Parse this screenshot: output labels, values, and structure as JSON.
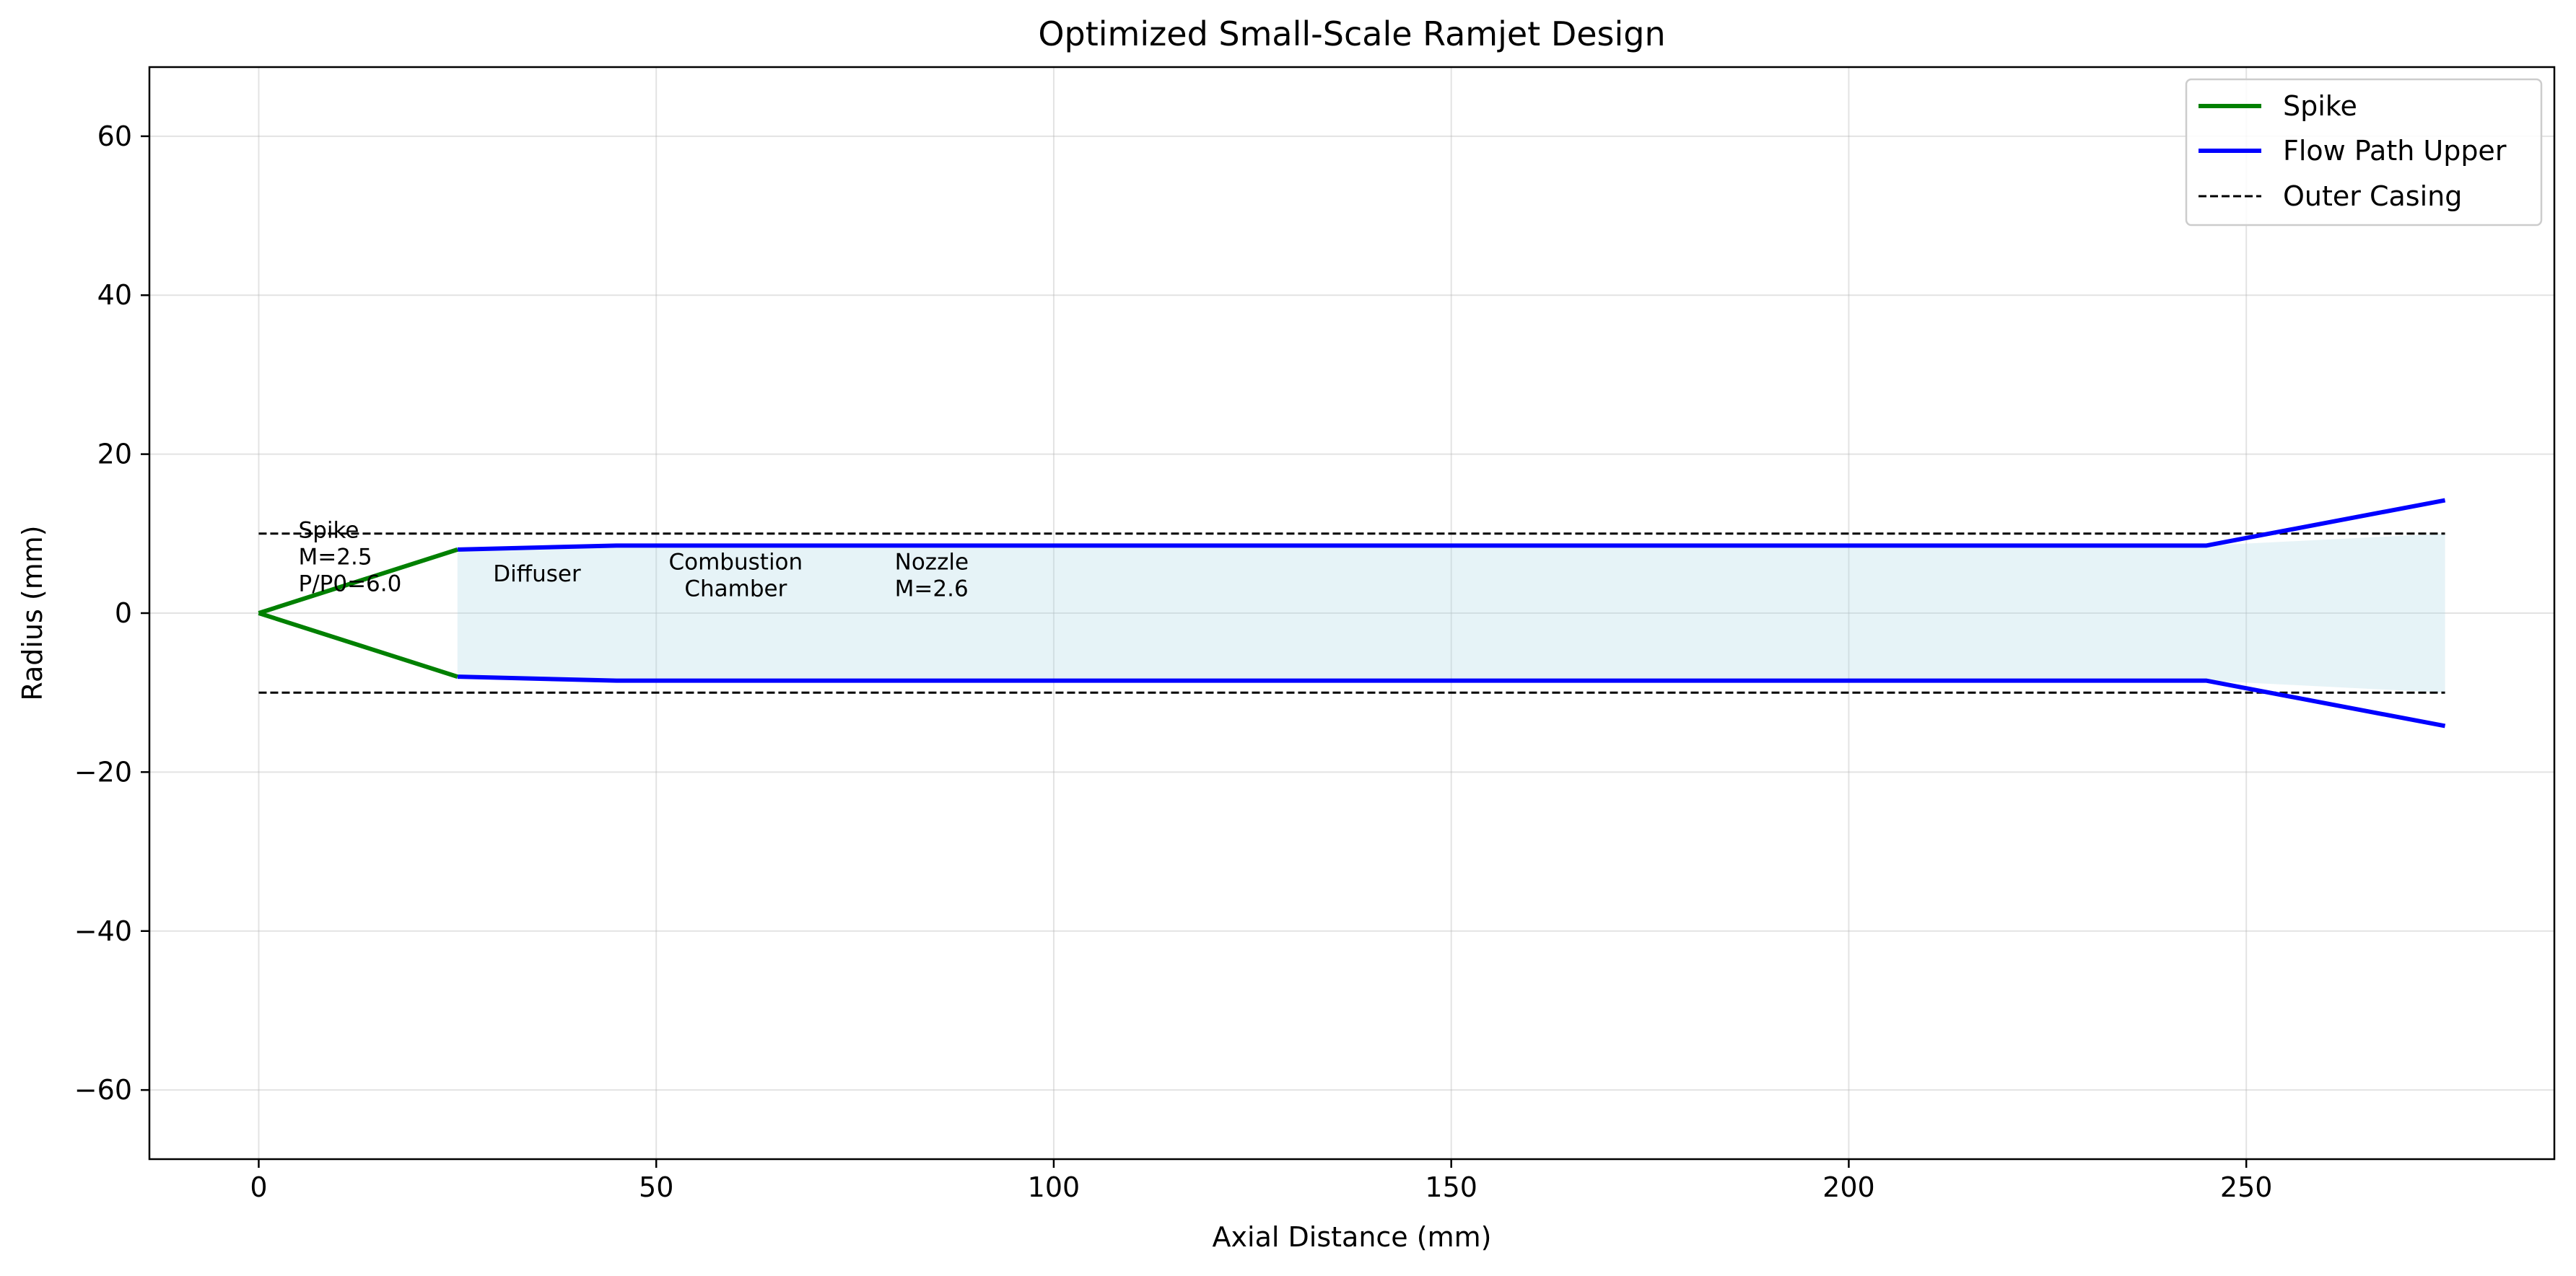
{
  "chart_data": {
    "type": "line",
    "title": "Optimized Small-Scale Ramjet Design",
    "xlabel": "Axial Distance (mm)",
    "ylabel": "Radius (mm)",
    "xlim": [
      -13.75,
      288.75
    ],
    "ylim": [
      -68.7,
      68.7
    ],
    "xticks": [
      0,
      50,
      100,
      150,
      200,
      250
    ],
    "yticks": [
      -60,
      -40,
      -20,
      0,
      20,
      40,
      60
    ],
    "xtick_labels": [
      "0",
      "50",
      "100",
      "150",
      "200",
      "250"
    ],
    "ytick_labels": [
      "−60",
      "−40",
      "−20",
      "0",
      "20",
      "40",
      "60"
    ],
    "grid": true,
    "legend": {
      "position": "top-right",
      "entries": [
        "Spike",
        "Flow Path Upper",
        "Outer Casing"
      ]
    },
    "colors": {
      "spike": "#008000",
      "flow_path": "#0000ff",
      "casing": "#000000",
      "fill": "#add8e6"
    },
    "series": [
      {
        "name": "Spike",
        "style": "solid",
        "color": "#008000",
        "segments": [
          {
            "x": [
              0,
              25
            ],
            "y": [
              0,
              8
            ]
          },
          {
            "x": [
              0,
              25
            ],
            "y": [
              0,
              -8
            ]
          }
        ]
      },
      {
        "name": "Flow Path Upper",
        "style": "solid",
        "color": "#0000ff",
        "segments": [
          {
            "x": [
              25,
              45,
              245,
              275
            ],
            "y": [
              8,
              8.5,
              8.5,
              14.2
            ]
          },
          {
            "x": [
              25,
              45,
              245,
              275
            ],
            "y": [
              -8,
              -8.5,
              -8.5,
              -14.2
            ]
          }
        ]
      },
      {
        "name": "Outer Casing",
        "style": "dashed",
        "color": "#000000",
        "segments": [
          {
            "x": [
              0,
              275
            ],
            "y": [
              10,
              10
            ]
          },
          {
            "x": [
              0,
              275
            ],
            "y": [
              -10,
              -10
            ]
          }
        ]
      }
    ],
    "fill_region": {
      "x": [
        25,
        45,
        245,
        275
      ],
      "upper": [
        8,
        8.5,
        8.5,
        10
      ],
      "lower": [
        -8,
        -8.5,
        -8.5,
        -10
      ]
    },
    "annotations": [
      {
        "lines": [
          "Spike",
          "M=2.5",
          "P/P0=6.0"
        ],
        "x": 5,
        "y": 9.5,
        "align": "left"
      },
      {
        "lines": [
          "Diffuser"
        ],
        "x": 35,
        "y": 4,
        "align": "center"
      },
      {
        "lines": [
          "Combustion",
          "Chamber"
        ],
        "x": 60,
        "y": 5.5,
        "align": "center"
      },
      {
        "lines": [
          "Nozzle",
          "M=2.6"
        ],
        "x": 80,
        "y": 5.5,
        "align": "left"
      }
    ]
  }
}
